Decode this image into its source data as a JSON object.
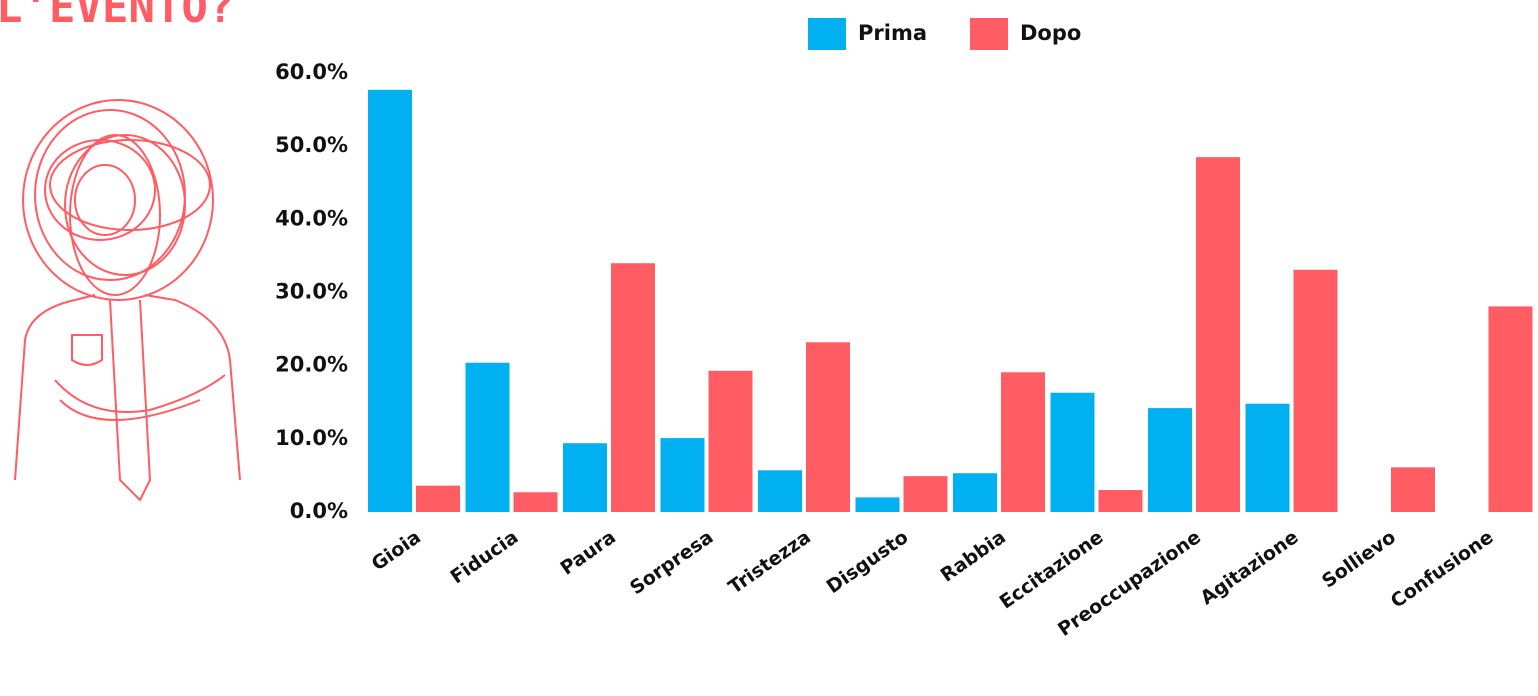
{
  "chart_data": {
    "type": "bar",
    "title": "L'EVENTO?",
    "categories": [
      "Gioia",
      "Fiducia",
      "Paura",
      "Sorpresa",
      "Tristezza",
      "Disgusto",
      "Rabbia",
      "Eccitazione",
      "Preoccupazione",
      "Agitazione",
      "Sollievo",
      "Confusione"
    ],
    "series": [
      {
        "name": "Prima",
        "color": "#00b0f0",
        "values": [
          57.7,
          20.4,
          9.4,
          10.1,
          5.7,
          2.0,
          5.3,
          16.3,
          14.2,
          14.8,
          0,
          0
        ]
      },
      {
        "name": "Dopo",
        "color": "#ff5c63",
        "values": [
          3.6,
          2.7,
          34.0,
          19.3,
          23.2,
          4.9,
          19.1,
          3.0,
          48.5,
          33.1,
          6.1,
          28.1
        ]
      }
    ],
    "ylim": [
      0,
      60
    ],
    "yticks": [
      {
        "value": 0,
        "label": "0.0%"
      },
      {
        "value": 10,
        "label": "10.0%"
      },
      {
        "value": 20,
        "label": "20.0%"
      },
      {
        "value": 30,
        "label": "30.0%"
      },
      {
        "value": 40,
        "label": "40.0%"
      },
      {
        "value": 50,
        "label": "50.0%"
      },
      {
        "value": 60,
        "label": "60.0%"
      }
    ],
    "grid": false
  }
}
